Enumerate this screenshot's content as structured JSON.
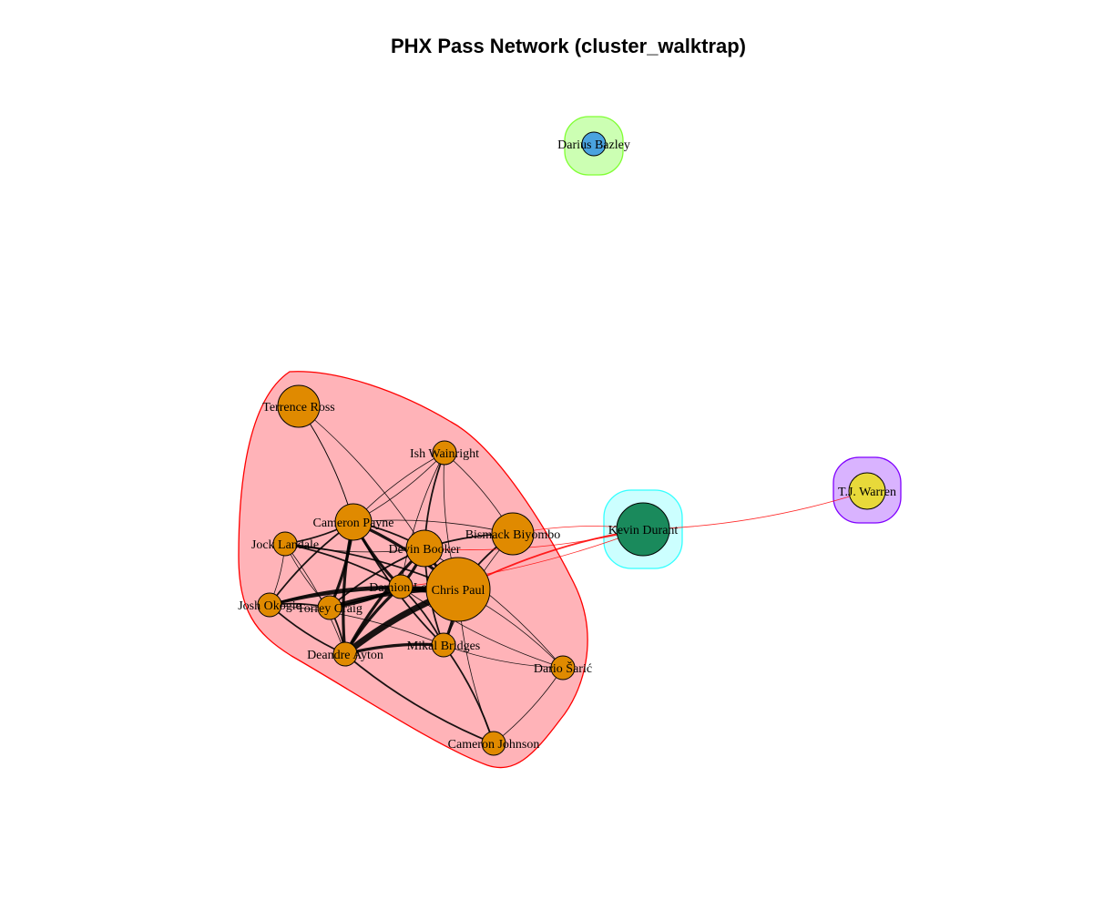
{
  "title": "PHX Pass Network (cluster_walktrap)",
  "colors": {
    "cluster_main_fill": "#ffb3b8",
    "cluster_main_stroke": "#ff0000",
    "cluster_kd_fill": "#ccffff",
    "cluster_kd_stroke": "#33ffff",
    "cluster_tj_fill": "#d9b3ff",
    "cluster_tj_stroke": "#8000ff",
    "cluster_db_fill": "#ccffb3",
    "cluster_db_stroke": "#80ff33",
    "node_main": "#e08a00",
    "node_kd": "#1a8a5c",
    "node_tj": "#e8d93a",
    "node_db": "#4aa3df",
    "edge_intra": "#000000",
    "edge_inter": "#ff0000"
  },
  "nodes": [
    {
      "id": "ross",
      "name": "Terrence Ross",
      "cluster": "main",
      "size": 3
    },
    {
      "id": "wainright",
      "name": "Ish Wainright",
      "cluster": "main",
      "size": 1
    },
    {
      "id": "payne",
      "name": "Cameron Payne",
      "cluster": "main",
      "size": 2
    },
    {
      "id": "landale",
      "name": "Jock Landale",
      "cluster": "main",
      "size": 1
    },
    {
      "id": "booker",
      "name": "Devin Booker",
      "cluster": "main",
      "size": 2
    },
    {
      "id": "biyombo",
      "name": "Bismack Biyombo",
      "cluster": "main",
      "size": 3
    },
    {
      "id": "lee",
      "name": "Damion Lee",
      "cluster": "main",
      "size": 1
    },
    {
      "id": "paul",
      "name": "Chris Paul",
      "cluster": "main",
      "size": 5
    },
    {
      "id": "okogie",
      "name": "Josh Okogie",
      "cluster": "main",
      "size": 1
    },
    {
      "id": "craig",
      "name": "Torrey Craig",
      "cluster": "main",
      "size": 1
    },
    {
      "id": "ayton",
      "name": "Deandre Ayton",
      "cluster": "main",
      "size": 1
    },
    {
      "id": "bridges",
      "name": "Mikal Bridges",
      "cluster": "main",
      "size": 1
    },
    {
      "id": "saric",
      "name": "Dario Šarić",
      "cluster": "main",
      "size": 1
    },
    {
      "id": "johnson",
      "name": "Cameron Johnson",
      "cluster": "main",
      "size": 1
    },
    {
      "id": "durant",
      "name": "Kevin Durant",
      "cluster": "kd",
      "size": 4
    },
    {
      "id": "warren",
      "name": "T.J. Warren",
      "cluster": "tj",
      "size": 2
    },
    {
      "id": "bazley",
      "name": "Darius Bazley",
      "cluster": "db",
      "size": 1
    }
  ],
  "edges": [
    {
      "s": "paul",
      "t": "ayton",
      "w": 6
    },
    {
      "s": "paul",
      "t": "lee",
      "w": 5
    },
    {
      "s": "paul",
      "t": "craig",
      "w": 4
    },
    {
      "s": "paul",
      "t": "booker",
      "w": 3
    },
    {
      "s": "paul",
      "t": "payne",
      "w": 3
    },
    {
      "s": "paul",
      "t": "bridges",
      "w": 3
    },
    {
      "s": "paul",
      "t": "okogie",
      "w": 3
    },
    {
      "s": "paul",
      "t": "biyombo",
      "w": 2
    },
    {
      "s": "paul",
      "t": "landale",
      "w": 2
    },
    {
      "s": "paul",
      "t": "saric",
      "w": 1
    },
    {
      "s": "paul",
      "t": "johnson",
      "w": 1
    },
    {
      "s": "paul",
      "t": "wainright",
      "w": 1
    },
    {
      "s": "payne",
      "t": "ayton",
      "w": 3
    },
    {
      "s": "payne",
      "t": "craig",
      "w": 3
    },
    {
      "s": "payne",
      "t": "lee",
      "w": 3
    },
    {
      "s": "payne",
      "t": "booker",
      "w": 2
    },
    {
      "s": "payne",
      "t": "okogie",
      "w": 2
    },
    {
      "s": "payne",
      "t": "landale",
      "w": 2
    },
    {
      "s": "payne",
      "t": "bridges",
      "w": 2
    },
    {
      "s": "payne",
      "t": "biyombo",
      "w": 1
    },
    {
      "s": "payne",
      "t": "ross",
      "w": 1
    },
    {
      "s": "payne",
      "t": "wainright",
      "w": 1
    },
    {
      "s": "booker",
      "t": "ayton",
      "w": 3
    },
    {
      "s": "booker",
      "t": "lee",
      "w": 3
    },
    {
      "s": "booker",
      "t": "bridges",
      "w": 2
    },
    {
      "s": "booker",
      "t": "biyombo",
      "w": 2
    },
    {
      "s": "booker",
      "t": "craig",
      "w": 2
    },
    {
      "s": "booker",
      "t": "wainright",
      "w": 2
    },
    {
      "s": "booker",
      "t": "ross",
      "w": 1
    },
    {
      "s": "booker",
      "t": "landale",
      "w": 1
    },
    {
      "s": "lee",
      "t": "ayton",
      "w": 3
    },
    {
      "s": "lee",
      "t": "craig",
      "w": 3
    },
    {
      "s": "lee",
      "t": "okogie",
      "w": 2
    },
    {
      "s": "lee",
      "t": "bridges",
      "w": 2
    },
    {
      "s": "lee",
      "t": "landale",
      "w": 2
    },
    {
      "s": "ayton",
      "t": "bridges",
      "w": 3
    },
    {
      "s": "ayton",
      "t": "craig",
      "w": 2
    },
    {
      "s": "ayton",
      "t": "okogie",
      "w": 2
    },
    {
      "s": "ayton",
      "t": "landale",
      "w": 1
    },
    {
      "s": "okogie",
      "t": "craig",
      "w": 2
    },
    {
      "s": "okogie",
      "t": "landale",
      "w": 1
    },
    {
      "s": "bridges",
      "t": "johnson",
      "w": 2
    },
    {
      "s": "bridges",
      "t": "saric",
      "w": 1
    },
    {
      "s": "bridges",
      "t": "biyombo",
      "w": 1
    },
    {
      "s": "ayton",
      "t": "johnson",
      "w": 2
    },
    {
      "s": "saric",
      "t": "johnson",
      "w": 1
    },
    {
      "s": "biyombo",
      "t": "wainright",
      "w": 1
    },
    {
      "s": "wainright",
      "t": "payne",
      "w": 1
    },
    {
      "s": "wainright",
      "t": "lee",
      "w": 1
    },
    {
      "s": "ross",
      "t": "payne",
      "w": 1
    },
    {
      "s": "landale",
      "t": "craig",
      "w": 1
    },
    {
      "s": "okogie",
      "t": "bridges",
      "w": 1
    },
    {
      "s": "saric",
      "t": "booker",
      "w": 1
    },
    {
      "s": "saric",
      "t": "lee",
      "w": 1
    },
    {
      "s": "durant",
      "t": "paul",
      "w": 2,
      "inter": true
    },
    {
      "s": "durant",
      "t": "booker",
      "w": 1,
      "inter": true
    },
    {
      "s": "durant",
      "t": "biyombo",
      "w": 1,
      "inter": true
    },
    {
      "s": "durant",
      "t": "lee",
      "w": 1,
      "inter": true
    },
    {
      "s": "durant",
      "t": "warren",
      "w": 1,
      "inter": true
    }
  ]
}
